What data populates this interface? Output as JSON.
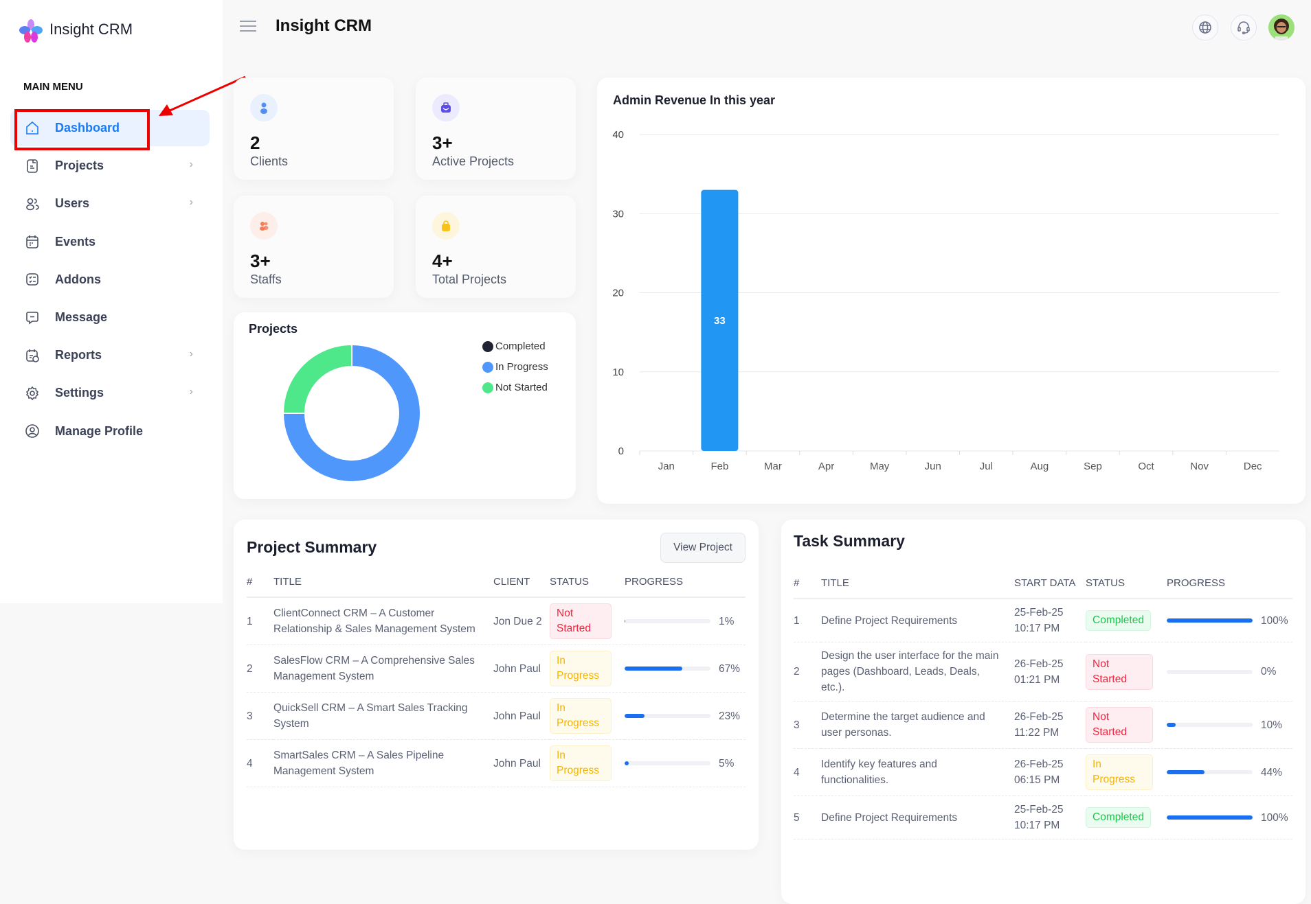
{
  "app": {
    "brand": "Insight CRM",
    "title": "Insight CRM",
    "accent": "#1a7cf5"
  },
  "sidebar": {
    "section_label": "MAIN MENU",
    "items": [
      {
        "label": "Dashboard",
        "icon": "home-icon",
        "active": true,
        "has_children": false
      },
      {
        "label": "Projects",
        "icon": "document-icon",
        "has_children": true
      },
      {
        "label": "Users",
        "icon": "users-icon",
        "has_children": true
      },
      {
        "label": "Events",
        "icon": "calendar-icon",
        "has_children": false
      },
      {
        "label": "Addons",
        "icon": "checklist-icon",
        "has_children": false
      },
      {
        "label": "Message",
        "icon": "message-icon",
        "has_children": false
      },
      {
        "label": "Reports",
        "icon": "calendar-report-icon",
        "has_children": true
      },
      {
        "label": "Settings",
        "icon": "gear-icon",
        "has_children": true
      },
      {
        "label": "Manage Profile",
        "icon": "user-circle-icon",
        "has_children": false
      }
    ]
  },
  "header": {
    "icons": [
      "menu-icon",
      "globe-icon",
      "headset-icon",
      "avatar"
    ]
  },
  "stats": [
    {
      "value": "2",
      "label": "Clients",
      "icon": "user-icon",
      "color": "#4f8ff7",
      "bg": "#e9f0fe"
    },
    {
      "value": "3+",
      "label": "Active Projects",
      "icon": "briefcase-icon",
      "color": "#5b4fe8",
      "bg": "#ecebfd"
    },
    {
      "value": "3+",
      "label": "Staffs",
      "icon": "staff-icon",
      "color": "#f47c5a",
      "bg": "#fdeee9"
    },
    {
      "value": "4+",
      "label": "Total Projects",
      "icon": "bag-icon",
      "color": "#f7c21b",
      "bg": "#fef6dc"
    }
  ],
  "projects_chart": {
    "title": "Projects",
    "legend": [
      {
        "name": "Completed",
        "color": "#1f2333",
        "value": 0
      },
      {
        "name": "In Progress",
        "color": "#4f97fb",
        "value": 3
      },
      {
        "name": "Not Started",
        "color": "#4ee88b",
        "value": 1
      }
    ]
  },
  "chart_data": [
    {
      "type": "bar",
      "title": "Admin Revenue In this year",
      "categories": [
        "Jan",
        "Feb",
        "Mar",
        "Apr",
        "May",
        "Jun",
        "Jul",
        "Aug",
        "Sep",
        "Oct",
        "Nov",
        "Dec"
      ],
      "values": [
        0,
        33,
        0,
        0,
        0,
        0,
        0,
        0,
        0,
        0,
        0,
        0
      ],
      "ylim": [
        0,
        40
      ],
      "yticks": [
        0,
        10,
        20,
        30,
        40
      ],
      "grid": true,
      "color": "#2196f3",
      "data_labels": true
    },
    {
      "type": "pie",
      "title": "Projects",
      "categories": [
        "Completed",
        "In Progress",
        "Not Started"
      ],
      "values": [
        0,
        3,
        1
      ],
      "donut": true,
      "legend": "right"
    }
  ],
  "project_summary": {
    "title": "Project Summary",
    "button": "View Project",
    "columns": [
      "#",
      "TITLE",
      "CLIENT",
      "STATUS",
      "PROGRESS"
    ],
    "rows": [
      {
        "n": "1",
        "title": "ClientConnect CRM – A Customer Relationship & Sales Management System",
        "client": "Jon Due 2",
        "status": "Not Started",
        "progress": 1
      },
      {
        "n": "2",
        "title": "SalesFlow CRM – A Comprehensive Sales Management System",
        "client": "John Paul",
        "status": "In Progress",
        "progress": 67
      },
      {
        "n": "3",
        "title": "QuickSell CRM – A Smart Sales Tracking System",
        "client": "John Paul",
        "status": "In Progress",
        "progress": 23
      },
      {
        "n": "4",
        "title": "SmartSales CRM – A Sales Pipeline Management System",
        "client": "John Paul",
        "status": "In Progress",
        "progress": 5
      }
    ]
  },
  "task_summary": {
    "title": "Task Summary",
    "columns": [
      "#",
      "TITLE",
      "START DATA",
      "STATUS",
      "PROGRESS"
    ],
    "rows": [
      {
        "n": "1",
        "title": "Define Project Requirements",
        "date": "25-Feb-25",
        "time": "10:17 PM",
        "status": "Completed",
        "progress": 100
      },
      {
        "n": "2",
        "title": "Design the user interface for the main pages (Dashboard, Leads, Deals, etc.).",
        "date": "26-Feb-25",
        "time": "01:21 PM",
        "status": "Not Started",
        "progress": 0
      },
      {
        "n": "3",
        "title": "Determine the target audience and user personas.",
        "date": "26-Feb-25",
        "time": "11:22 PM",
        "status": "Not Started",
        "progress": 10
      },
      {
        "n": "4",
        "title": "Identify key features and functionalities.",
        "date": "26-Feb-25",
        "time": "06:15 PM",
        "status": "In Progress",
        "progress": 44
      },
      {
        "n": "5",
        "title": "Define Project Requirements",
        "date": "25-Feb-25",
        "time": "10:17 PM",
        "status": "Completed",
        "progress": 100
      }
    ]
  }
}
